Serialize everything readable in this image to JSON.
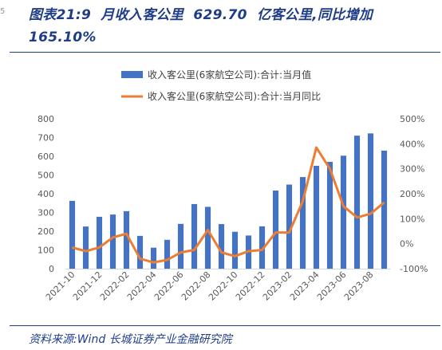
{
  "page": {
    "stub": "5",
    "title_line1": "图表21:9 月收入客公里 629.70 亿客公里,同比增加",
    "title_line2": "165.10%",
    "source": "资料来源:Wind 长城证券产业金融研究院"
  },
  "colors": {
    "bar": "#4472c4",
    "line": "#ed7d31",
    "title": "#1f3c88"
  },
  "chart_data": {
    "type": "bar",
    "categories": [
      "2021-10",
      "2021-11",
      "2021-12",
      "2022-01",
      "2022-02",
      "2022-03",
      "2022-04",
      "2022-05",
      "2022-06",
      "2022-07",
      "2022-08",
      "2022-09",
      "2022-10",
      "2022-11",
      "2022-12",
      "2023-01",
      "2023-02",
      "2023-03",
      "2023-04",
      "2023-05",
      "2023-06",
      "2023-07",
      "2023-08",
      "2023-09"
    ],
    "x_tick_labels": [
      "2021-10",
      "2021-12",
      "2022-02",
      "2022-04",
      "2022-06",
      "2022-08",
      "2022-10",
      "2022-12",
      "2023-02",
      "2023-04",
      "2023-06",
      "2023-08"
    ],
    "series": [
      {
        "name": "收入客公里(6家航空公司):合计:当月值",
        "type": "bar",
        "axis": "left",
        "values": [
          362,
          225,
          277,
          289,
          307,
          175,
          112,
          154,
          239,
          345,
          330,
          238,
          197,
          177,
          226,
          417,
          449,
          489,
          549,
          570,
          603,
          710,
          722,
          630
        ]
      },
      {
        "name": "收入客公里(6家航空公司):合计:当月同比",
        "type": "line",
        "axis": "right",
        "values": [
          -15,
          -30,
          -15,
          25,
          40,
          -60,
          -75,
          -65,
          -35,
          -25,
          55,
          -35,
          -50,
          -30,
          -25,
          45,
          45,
          170,
          385,
          300,
          150,
          105,
          120,
          165
        ]
      }
    ],
    "y_left": {
      "ylim": [
        0,
        800
      ],
      "ticks": [
        "0",
        "100",
        "200",
        "300",
        "400",
        "500",
        "600",
        "700",
        "800"
      ]
    },
    "y_right": {
      "ylim": [
        -100,
        500
      ],
      "ticks": [
        "-100%",
        "0%",
        "100%",
        "200%",
        "300%",
        "400%",
        "500%"
      ]
    },
    "legend_position": "top",
    "grid": false
  }
}
